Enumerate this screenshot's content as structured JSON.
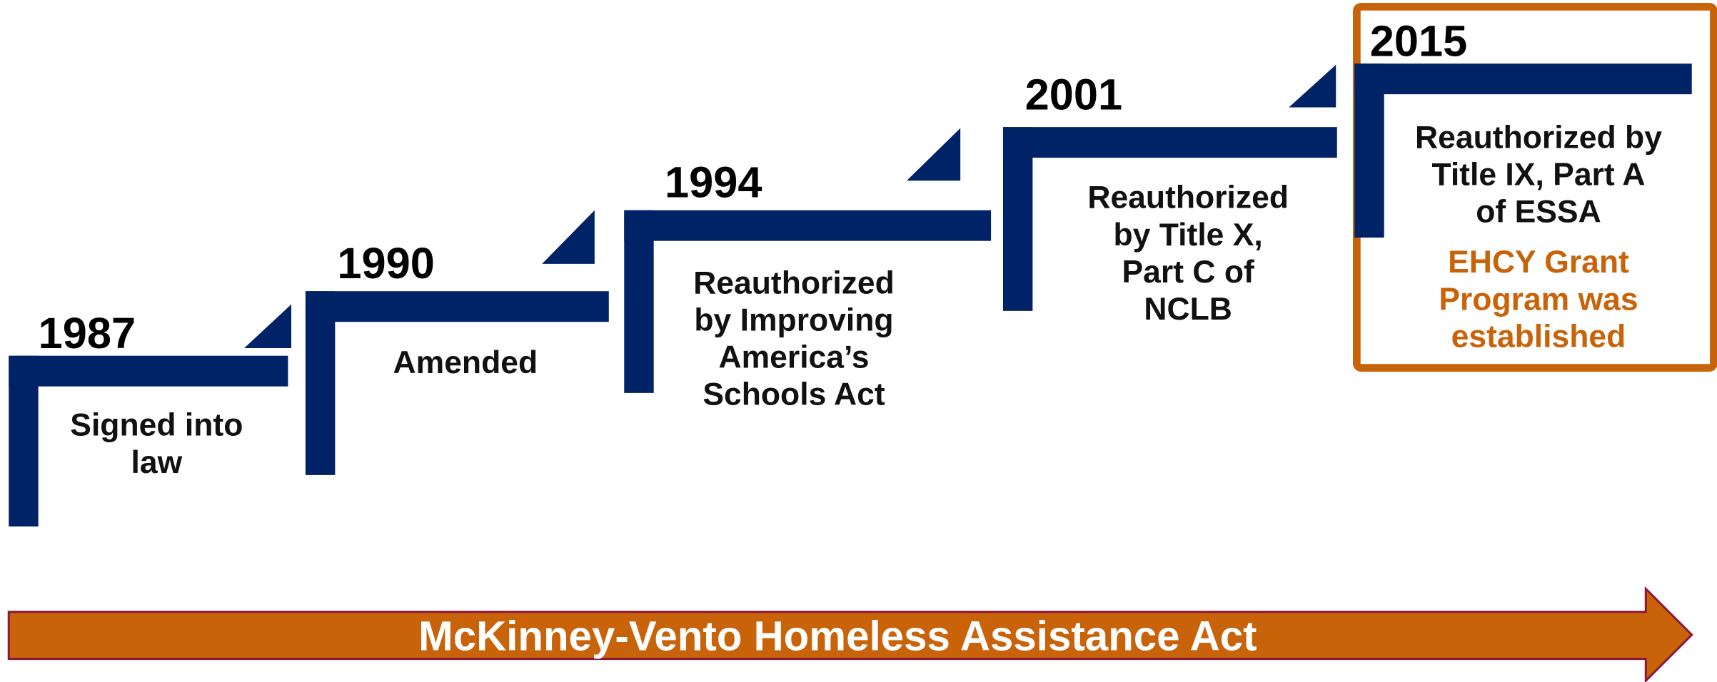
{
  "milestones": [
    {
      "year": "1987",
      "lines": [
        "Signed into",
        "law"
      ]
    },
    {
      "year": "1990",
      "lines": [
        "Amended"
      ]
    },
    {
      "year": "1994",
      "lines": [
        "Reauthorized",
        "by Improving",
        "America’s",
        "Schools Act"
      ]
    },
    {
      "year": "2001",
      "lines": [
        "Reauthorized",
        "by Title X,",
        "Part C of",
        "NCLB"
      ]
    },
    {
      "year": "2015",
      "lines": [
        "Reauthorized by",
        "Title IX, Part A",
        "of ESSA"
      ],
      "note": [
        "EHCY Grant",
        "Program was",
        "established"
      ]
    }
  ],
  "arrow": {
    "label": "McKinney-Vento Homeless Assistance Act"
  }
}
